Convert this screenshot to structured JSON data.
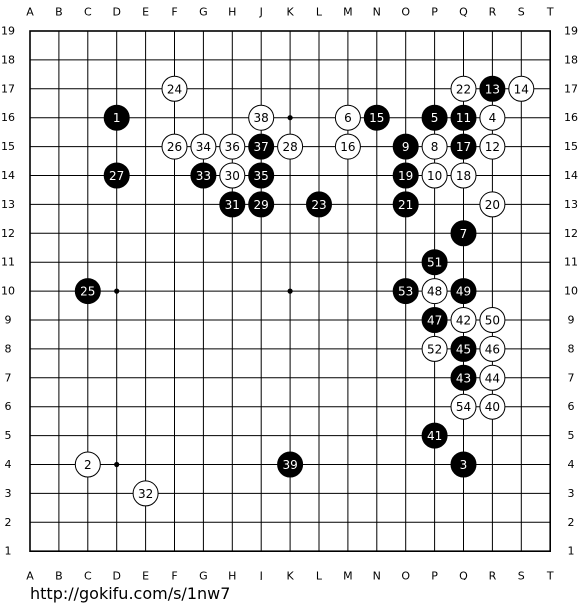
{
  "board": {
    "size": 19,
    "column_labels": [
      "A",
      "B",
      "C",
      "D",
      "E",
      "F",
      "G",
      "H",
      "J",
      "K",
      "L",
      "M",
      "N",
      "O",
      "P",
      "Q",
      "R",
      "S",
      "T"
    ],
    "row_labels": [
      "19",
      "18",
      "17",
      "16",
      "15",
      "14",
      "13",
      "12",
      "11",
      "10",
      "9",
      "8",
      "7",
      "6",
      "5",
      "4",
      "3",
      "2",
      "1"
    ],
    "star_points": [
      [
        3,
        15
      ],
      [
        9,
        15
      ],
      [
        15,
        15
      ],
      [
        3,
        9
      ],
      [
        9,
        9
      ],
      [
        15,
        9
      ],
      [
        3,
        3
      ],
      [
        9,
        3
      ],
      [
        15,
        3
      ]
    ],
    "stones": [
      {
        "col": 3,
        "row": 3,
        "color": "black",
        "label": "1"
      },
      {
        "col": 2,
        "row": 15,
        "color": "white",
        "label": "2"
      },
      {
        "col": 15,
        "row": 15,
        "color": "black",
        "label": "3"
      },
      {
        "col": 16,
        "row": 3,
        "color": "white",
        "label": "4"
      },
      {
        "col": 14,
        "row": 3,
        "color": "black",
        "label": "5"
      },
      {
        "col": 11,
        "row": 3,
        "color": "white",
        "label": "6"
      },
      {
        "col": 15,
        "row": 7,
        "color": "black",
        "label": "7"
      },
      {
        "col": 14,
        "row": 4,
        "color": "white",
        "label": "8"
      },
      {
        "col": 13,
        "row": 4,
        "color": "black",
        "label": "9"
      },
      {
        "col": 14,
        "row": 5,
        "color": "white",
        "label": "10"
      },
      {
        "col": 15,
        "row": 3,
        "color": "black",
        "label": "11"
      },
      {
        "col": 16,
        "row": 4,
        "color": "white",
        "label": "12"
      },
      {
        "col": 16,
        "row": 2,
        "color": "black",
        "label": "13"
      },
      {
        "col": 17,
        "row": 2,
        "color": "white",
        "label": "14"
      },
      {
        "col": 12,
        "row": 3,
        "color": "black",
        "label": "15"
      },
      {
        "col": 11,
        "row": 4,
        "color": "white",
        "label": "16"
      },
      {
        "col": 15,
        "row": 4,
        "color": "black",
        "label": "17"
      },
      {
        "col": 15,
        "row": 5,
        "color": "white",
        "label": "18"
      },
      {
        "col": 13,
        "row": 5,
        "color": "black",
        "label": "19"
      },
      {
        "col": 16,
        "row": 6,
        "color": "white",
        "label": "20"
      },
      {
        "col": 13,
        "row": 6,
        "color": "black",
        "label": "21"
      },
      {
        "col": 15,
        "row": 2,
        "color": "white",
        "label": "22"
      },
      {
        "col": 10,
        "row": 6,
        "color": "black",
        "label": "23"
      },
      {
        "col": 5,
        "row": 2,
        "color": "white",
        "label": "24"
      },
      {
        "col": 2,
        "row": 9,
        "color": "black",
        "label": "25"
      },
      {
        "col": 5,
        "row": 4,
        "color": "white",
        "label": "26"
      },
      {
        "col": 3,
        "row": 5,
        "color": "black",
        "label": "27"
      },
      {
        "col": 9,
        "row": 4,
        "color": "white",
        "label": "28"
      },
      {
        "col": 8,
        "row": 6,
        "color": "black",
        "label": "29"
      },
      {
        "col": 7,
        "row": 5,
        "color": "white",
        "label": "30"
      },
      {
        "col": 7,
        "row": 6,
        "color": "black",
        "label": "31"
      },
      {
        "col": 4,
        "row": 16,
        "color": "white",
        "label": "32"
      },
      {
        "col": 6,
        "row": 5,
        "color": "black",
        "label": "33"
      },
      {
        "col": 6,
        "row": 4,
        "color": "white",
        "label": "34"
      },
      {
        "col": 8,
        "row": 5,
        "color": "black",
        "label": "35"
      },
      {
        "col": 7,
        "row": 4,
        "color": "white",
        "label": "36"
      },
      {
        "col": 8,
        "row": 4,
        "color": "black",
        "label": "37"
      },
      {
        "col": 8,
        "row": 3,
        "color": "white",
        "label": "38"
      },
      {
        "col": 9,
        "row": 15,
        "color": "black",
        "label": "39"
      },
      {
        "col": 16,
        "row": 13,
        "color": "white",
        "label": "40"
      },
      {
        "col": 14,
        "row": 14,
        "color": "black",
        "label": "41"
      },
      {
        "col": 15,
        "row": 10,
        "color": "white",
        "label": "42"
      },
      {
        "col": 15,
        "row": 12,
        "color": "black",
        "label": "43"
      },
      {
        "col": 16,
        "row": 12,
        "color": "white",
        "label": "44"
      },
      {
        "col": 15,
        "row": 11,
        "color": "black",
        "label": "45"
      },
      {
        "col": 16,
        "row": 11,
        "color": "white",
        "label": "46"
      },
      {
        "col": 14,
        "row": 10,
        "color": "black",
        "label": "47"
      },
      {
        "col": 14,
        "row": 9,
        "color": "white",
        "label": "48"
      },
      {
        "col": 15,
        "row": 9,
        "color": "black",
        "label": "49"
      },
      {
        "col": 16,
        "row": 10,
        "color": "white",
        "label": "50"
      },
      {
        "col": 14,
        "row": 8,
        "color": "black",
        "label": "51"
      },
      {
        "col": 14,
        "row": 11,
        "color": "white",
        "label": "52"
      },
      {
        "col": 13,
        "row": 9,
        "color": "black",
        "label": "53"
      },
      {
        "col": 15,
        "row": 13,
        "color": "white",
        "label": "54"
      }
    ]
  },
  "colors": {
    "board": "#ffffff",
    "line": "#000000",
    "black_stone": "#000000",
    "white_stone": "#ffffff",
    "black_label": "#ffffff",
    "white_label": "#000000"
  },
  "footer": {
    "source_url": "http://gokifu.com/s/1nw7"
  }
}
